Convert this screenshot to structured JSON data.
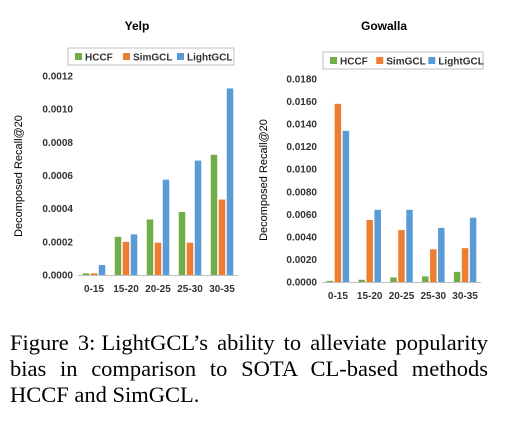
{
  "chart_data": [
    {
      "type": "bar",
      "title": "Yelp",
      "xlabel": "",
      "ylabel": "Decomposed Recall@20",
      "categories": [
        "0-15",
        "15-20",
        "20-25",
        "25-30",
        "30-35"
      ],
      "series": [
        {
          "name": "HCCF",
          "values": [
            1e-05,
            0.00023,
            0.000335,
            0.00038,
            0.000725
          ]
        },
        {
          "name": "SimGCL",
          "values": [
            1e-05,
            0.0002,
            0.000195,
            0.000195,
            0.000455
          ]
        },
        {
          "name": "LightGCL",
          "values": [
            6e-05,
            0.000245,
            0.000575,
            0.00069,
            0.001125
          ]
        }
      ],
      "ylim": [
        0,
        0.0012
      ],
      "yticks": [
        "0.0000",
        "0.0002",
        "0.0004",
        "0.0006",
        "0.0008",
        "0.0010",
        "0.0012"
      ],
      "legend": "top"
    },
    {
      "type": "bar",
      "title": "Gowalla",
      "xlabel": "",
      "ylabel": "Decomposed Recall@20",
      "categories": [
        "0-15",
        "15-20",
        "20-25",
        "25-30",
        "30-35"
      ],
      "series": [
        {
          "name": "HCCF",
          "values": [
            0.0001,
            0.0002,
            0.0004,
            0.0005,
            0.0009
          ]
        },
        {
          "name": "SimGCL",
          "values": [
            0.0158,
            0.0055,
            0.0046,
            0.0029,
            0.003
          ]
        },
        {
          "name": "LightGCL",
          "values": [
            0.0134,
            0.0064,
            0.0064,
            0.0048,
            0.0057
          ]
        }
      ],
      "ylim": [
        0,
        0.018
      ],
      "yticks": [
        "0.0000",
        "0.0020",
        "0.0040",
        "0.0060",
        "0.0080",
        "0.0100",
        "0.0120",
        "0.0140",
        "0.0160",
        "0.0180"
      ],
      "legend": "top"
    }
  ],
  "colors": {
    "HCCF": "#70AD47",
    "SimGCL": "#ED7D31",
    "LightGCL": "#5B9BD5"
  },
  "caption": {
    "label": "Figure 3:",
    "text": "LightGCL’s ability to alleviate popularity bias in comparison to SOTA CL-based methods HCCF and SimGCL."
  }
}
